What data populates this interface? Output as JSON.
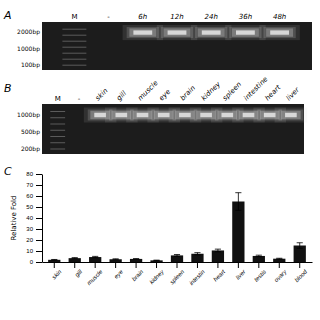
{
  "chart_data": [
    {
      "type": "gel",
      "title": "A",
      "color": "#1c1c1c",
      "categories": [
        "M",
        "-",
        "6h",
        "12h",
        "24h",
        "36h",
        "48h"
      ],
      "marker_labels": [
        "2000bp",
        "1000bp",
        "100bp"
      ]
    },
    {
      "type": "gel",
      "title": "B",
      "color": "#1c1c1c",
      "categories": [
        "M",
        "-",
        "skin",
        "gill",
        "muscle",
        "eye",
        "brain",
        "kidney",
        "spleen",
        "intestine",
        "heart",
        "liver"
      ],
      "marker_labels": [
        "1000bp",
        "500bp",
        "200bp"
      ]
    },
    {
      "type": "bar",
      "title": "C",
      "ylabel": "Relative Fold",
      "color": "#111111",
      "categories": [
        "skin",
        "gill",
        "muscle",
        "eye",
        "brain",
        "kidney",
        "spleen",
        "intestin",
        "heart",
        "liver",
        "testis",
        "ovary",
        "blood"
      ],
      "values": [
        2.0,
        3.5,
        4.5,
        2.5,
        2.8,
        1.5,
        6.0,
        7.5,
        10.5,
        55.0,
        5.5,
        3.0,
        15.0
      ],
      "errors": [
        0.3,
        0.5,
        0.6,
        0.4,
        0.3,
        0.2,
        0.8,
        1.0,
        1.2,
        8.0,
        0.7,
        0.4,
        2.5
      ],
      "ylim": [
        0,
        80
      ],
      "yticks": [
        0,
        10,
        20,
        30,
        40,
        50,
        60,
        70,
        80
      ]
    }
  ]
}
